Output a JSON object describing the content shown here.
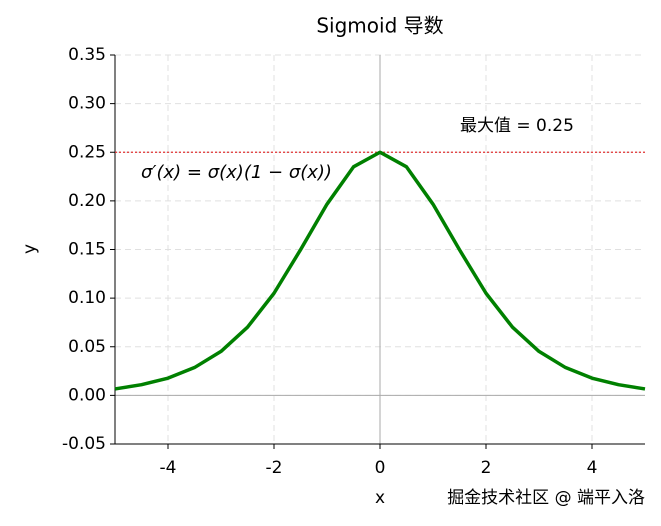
{
  "chart_data": {
    "type": "line",
    "title": "Sigmoid 导数",
    "xlabel": "x",
    "ylabel": "y",
    "x": [
      -5,
      -4.5,
      -4,
      -3.5,
      -3,
      -2.5,
      -2,
      -1.5,
      -1,
      -0.5,
      0,
      0.5,
      1,
      1.5,
      2,
      2.5,
      3,
      3.5,
      4,
      4.5,
      5
    ],
    "series": [
      {
        "name": "σ′(x) = σ(x)(1 − σ(x))",
        "color": "#008000",
        "values": [
          0.0066,
          0.011,
          0.0177,
          0.0286,
          0.0452,
          0.0701,
          0.105,
          0.1497,
          0.1966,
          0.235,
          0.25,
          0.235,
          0.1966,
          0.1497,
          0.105,
          0.0701,
          0.0452,
          0.0286,
          0.0177,
          0.011,
          0.0066
        ]
      }
    ],
    "xlim": [
      -5,
      5
    ],
    "ylim": [
      -0.05,
      0.35
    ],
    "xticks": [
      -4,
      -2,
      0,
      2,
      4
    ],
    "yticks": [
      -0.05,
      {
        "value": 0,
        "label": "0.00"
      },
      0.05,
      {
        "value": 0.1,
        "label": "0.10"
      },
      0.15,
      {
        "value": 0.2,
        "label": "0.20"
      },
      0.25,
      {
        "value": 0.3,
        "label": "0.30"
      },
      0.35
    ],
    "grid": true,
    "hline": {
      "value": 0.25,
      "color": "#e03030"
    },
    "annotation": "最大值 = 0.25",
    "watermark": "掘金技术社区 @ 端平入洛"
  }
}
